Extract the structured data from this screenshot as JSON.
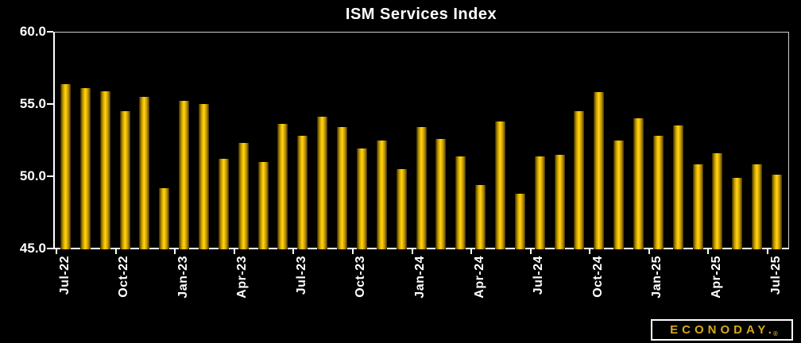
{
  "title": "ISM Services Index",
  "branding": {
    "logo_text": "ECONODAY.",
    "registered_mark": "®",
    "logo_color": "#d6a91e"
  },
  "colors": {
    "background": "#000000",
    "bar_highlight": "#ffd51c",
    "bar_body": "#f3c503",
    "bar_edge": "#3a2d00",
    "axis_line": "#ffffff",
    "plot_border": "#cfcfcf",
    "text": "#ffffff"
  },
  "chart_data": {
    "type": "bar",
    "title": "ISM Services Index",
    "xlabel": "",
    "ylabel": "",
    "ylim": [
      45.0,
      60.0
    ],
    "yticks": [
      45.0,
      50.0,
      55.0,
      60.0
    ],
    "ytick_labels": [
      "45.0",
      "50.0",
      "55.0",
      "60.0"
    ],
    "grid": false,
    "legend": "none",
    "categories": [
      "Jul-22",
      "Aug-22",
      "Sep-22",
      "Oct-22",
      "Nov-22",
      "Dec-22",
      "Jan-23",
      "Feb-23",
      "Mar-23",
      "Apr-23",
      "May-23",
      "Jun-23",
      "Jul-23",
      "Aug-23",
      "Sep-23",
      "Oct-23",
      "Nov-23",
      "Dec-23",
      "Jan-24",
      "Feb-24",
      "Mar-24",
      "Apr-24",
      "May-24",
      "Jun-24",
      "Jul-24",
      "Aug-24",
      "Sep-24",
      "Oct-24",
      "Nov-24",
      "Dec-24",
      "Jan-25",
      "Feb-25",
      "Mar-25",
      "Apr-25",
      "May-25",
      "Jun-25",
      "Jul-25"
    ],
    "values": [
      56.4,
      56.1,
      55.9,
      54.5,
      55.5,
      49.2,
      55.2,
      55.0,
      51.2,
      52.3,
      51.0,
      53.6,
      52.8,
      54.1,
      53.4,
      51.9,
      52.5,
      50.5,
      53.4,
      52.6,
      51.4,
      49.4,
      53.8,
      48.8,
      51.4,
      51.5,
      54.5,
      55.8,
      52.5,
      54.0,
      52.8,
      53.5,
      50.8,
      51.6,
      49.9,
      50.8,
      50.1
    ],
    "xtick_every": 3,
    "xtick_labels": [
      "Jul-22",
      "Oct-22",
      "Jan-23",
      "Apr-23",
      "Jul-23",
      "Oct-23",
      "Jan-24",
      "Apr-24",
      "Jul-24",
      "Oct-24",
      "Jan-25",
      "Apr-25",
      "Jul-25"
    ]
  }
}
